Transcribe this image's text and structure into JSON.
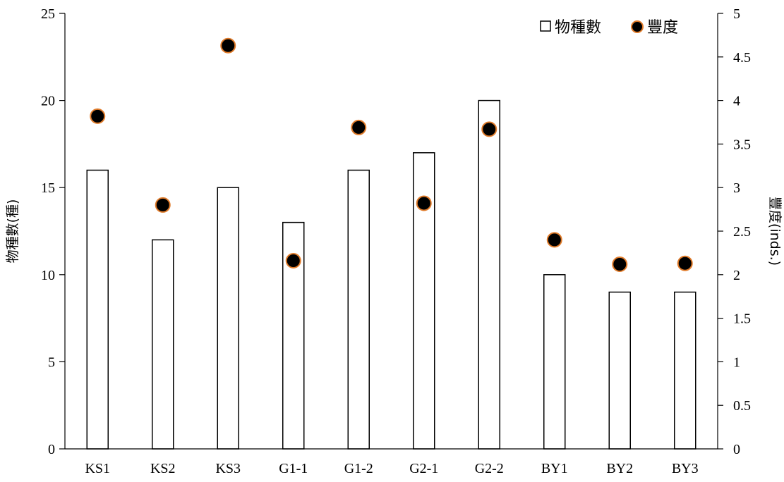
{
  "chart_data": {
    "type": "bar",
    "categories": [
      "KS1",
      "KS2",
      "KS3",
      "G1-1",
      "G1-2",
      "G2-1",
      "G2-2",
      "BY1",
      "BY2",
      "BY3"
    ],
    "series": [
      {
        "name": "物種數",
        "kind": "bar",
        "axis": "left",
        "values": [
          16,
          12,
          15,
          13,
          16,
          17,
          20,
          10,
          9,
          9
        ],
        "fill": "#ffffff",
        "stroke": "#000000"
      },
      {
        "name": "豐度",
        "kind": "scatter",
        "axis": "right",
        "values": [
          3.82,
          2.8,
          4.63,
          2.16,
          3.69,
          2.82,
          3.67,
          2.4,
          2.12,
          2.13
        ],
        "fill": "#000000",
        "stroke": "#e07b2a"
      }
    ],
    "ylabel": "物種數(種)",
    "y2label": "豐度(inds.)",
    "ylim": [
      0,
      25
    ],
    "y2lim": [
      0,
      5
    ],
    "yticks": [
      "0",
      "5",
      "10",
      "15",
      "20",
      "25"
    ],
    "y2ticks": [
      "0",
      "0.5",
      "1",
      "1.5",
      "2",
      "2.5",
      "3",
      "3.5",
      "4",
      "4.5",
      "5"
    ],
    "legend_position": "top-right",
    "grid": false
  }
}
